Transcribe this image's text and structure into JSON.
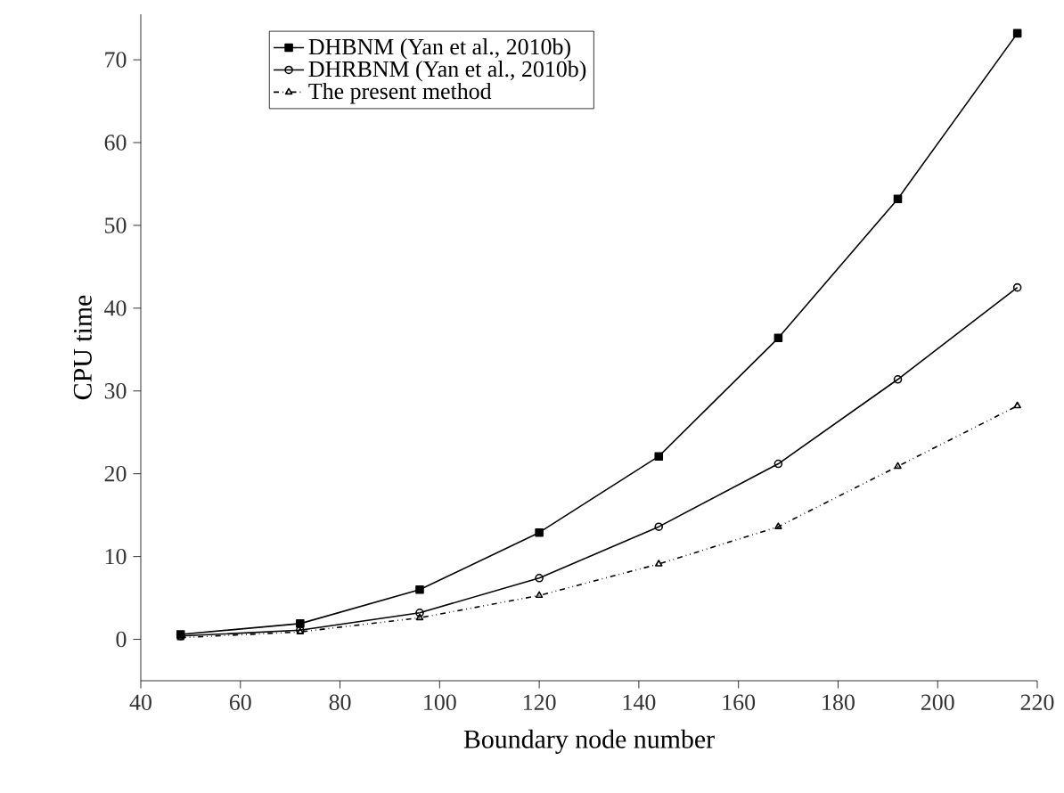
{
  "chart_data": {
    "type": "line",
    "xlabel": "Boundary node number",
    "ylabel": "CPU time",
    "x": [
      48,
      72,
      96,
      120,
      144,
      168,
      192,
      216
    ],
    "series": [
      {
        "name": "DHBNM (Yan et al., 2010b)",
        "color": "#000000",
        "marker": "square",
        "line_style": "solid",
        "values": [
          0.6,
          1.9,
          6.0,
          12.9,
          22.1,
          36.4,
          53.2,
          73.2
        ]
      },
      {
        "name": "DHRBNM (Yan et al., 2010b)",
        "color": "#000000",
        "marker": "circle",
        "line_style": "solid",
        "values": [
          0.4,
          1.1,
          3.2,
          7.4,
          13.6,
          21.2,
          31.4,
          42.5
        ]
      },
      {
        "name": "The present method",
        "color": "#000000",
        "marker": "triangle",
        "line_style": "dashdotdotted",
        "values": [
          0.2,
          0.9,
          2.6,
          5.3,
          9.1,
          13.6,
          20.9,
          28.2
        ]
      }
    ],
    "xlim": [
      40,
      220
    ],
    "ylim": [
      -5,
      75.5
    ],
    "xticks": [
      40,
      60,
      80,
      100,
      120,
      140,
      160,
      180,
      200,
      220
    ],
    "yticks": [
      0,
      10,
      20,
      30,
      40,
      50,
      60,
      70
    ],
    "grid": false,
    "legend": "top left"
  }
}
